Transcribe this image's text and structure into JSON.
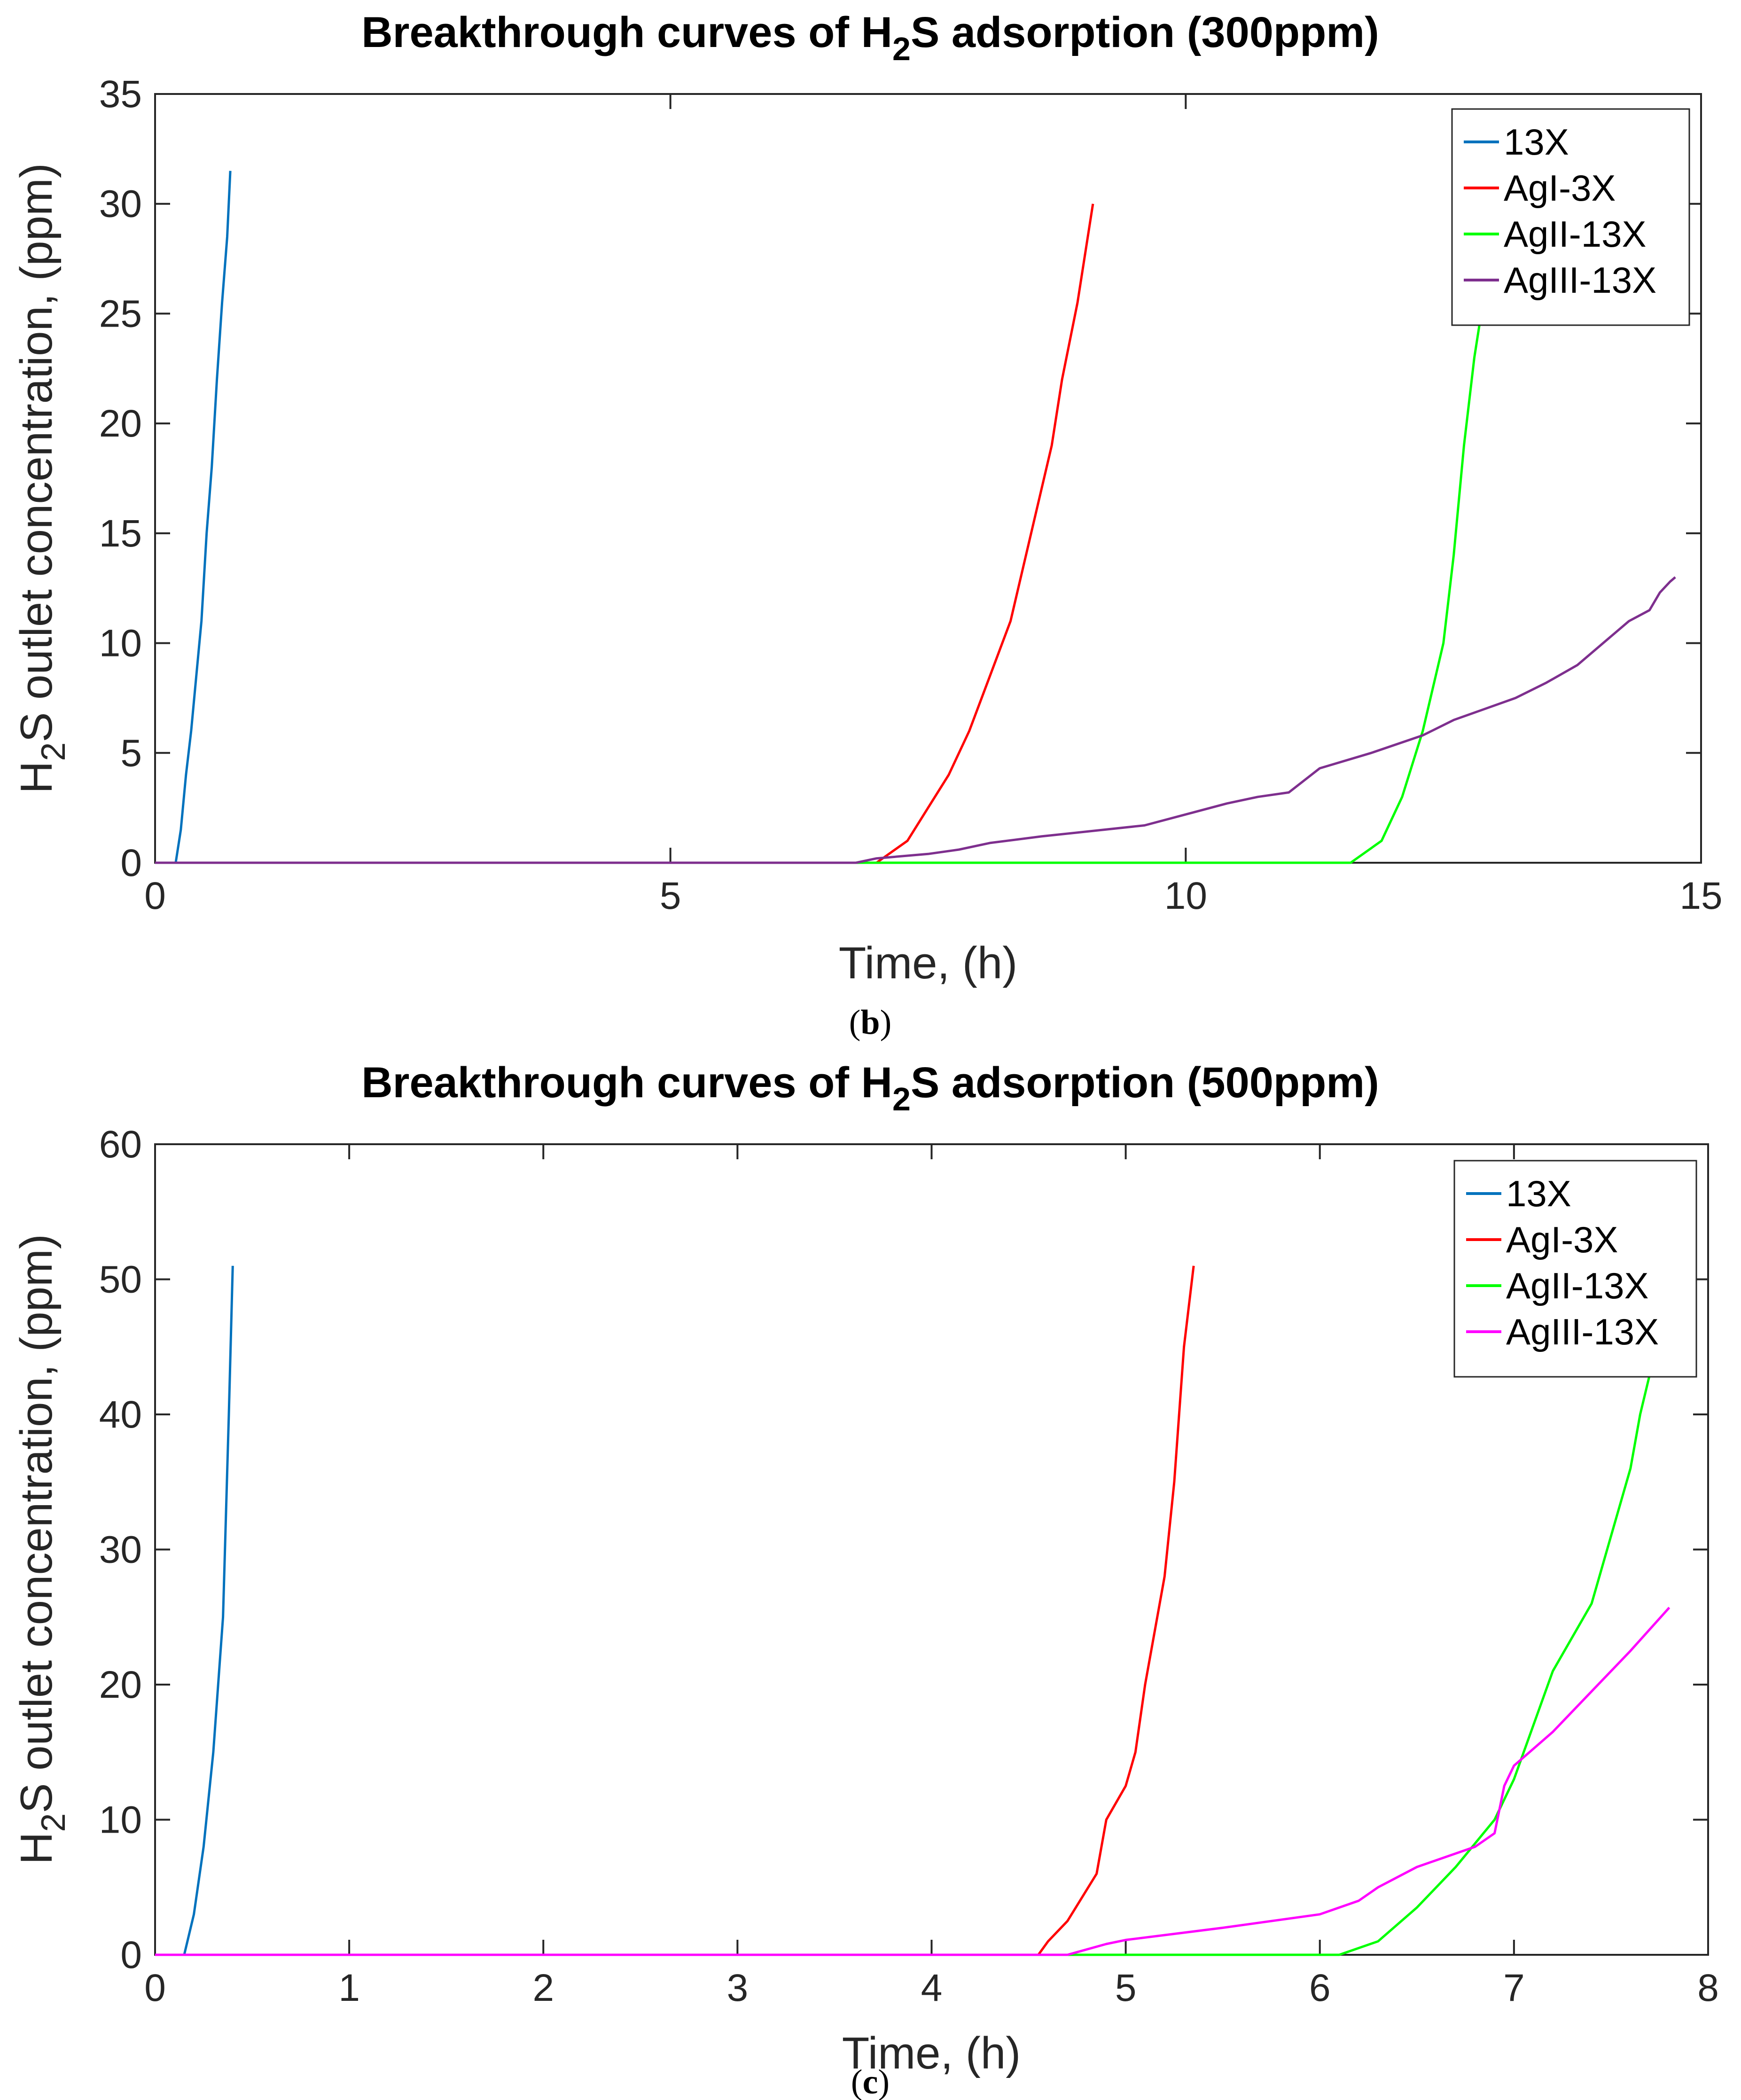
{
  "chart_data": [
    {
      "type": "line",
      "title_prefix": "Breakthrough curves of H",
      "title_sub": "2",
      "title_suffix": "S adsorption (300ppm)",
      "xlabel": "Time, (h)",
      "ylabel_prefix": "H",
      "ylabel_sub": "2",
      "ylabel_suffix": "S outlet concentration, (ppm)",
      "xlim": [
        0,
        15
      ],
      "ylim": [
        0,
        35
      ],
      "xticks": [
        0,
        5,
        10,
        15
      ],
      "yticks": [
        0,
        5,
        10,
        15,
        20,
        25,
        30,
        35
      ],
      "legend_position": "top-right",
      "caption_open": "(",
      "caption_letter": "b",
      "caption_close": ")",
      "series": [
        {
          "name": "13X",
          "color": "#0072BD",
          "points": [
            [
              0,
              0
            ],
            [
              0.2,
              0
            ],
            [
              0.25,
              1.5
            ],
            [
              0.3,
              4
            ],
            [
              0.35,
              6
            ],
            [
              0.4,
              8.5
            ],
            [
              0.45,
              11
            ],
            [
              0.5,
              15
            ],
            [
              0.55,
              18
            ],
            [
              0.6,
              22
            ],
            [
              0.65,
              25.5
            ],
            [
              0.7,
              28.5
            ],
            [
              0.73,
              31.5
            ]
          ]
        },
        {
          "name": "AgI-3X",
          "color": "#FF0000",
          "points": [
            [
              0,
              0
            ],
            [
              7.0,
              0
            ],
            [
              7.3,
              1
            ],
            [
              7.5,
              2.5
            ],
            [
              7.7,
              4
            ],
            [
              7.9,
              6
            ],
            [
              8.1,
              8.5
            ],
            [
              8.3,
              11
            ],
            [
              8.5,
              15
            ],
            [
              8.7,
              19
            ],
            [
              8.8,
              22
            ],
            [
              8.95,
              25.5
            ],
            [
              9.1,
              30
            ]
          ]
        },
        {
          "name": "AgII-13X",
          "color": "#00FF00",
          "points": [
            [
              0,
              0
            ],
            [
              11.6,
              0
            ],
            [
              11.9,
              1
            ],
            [
              12.1,
              3
            ],
            [
              12.3,
              6
            ],
            [
              12.5,
              10
            ],
            [
              12.6,
              14
            ],
            [
              12.7,
              19
            ],
            [
              12.8,
              23
            ],
            [
              12.9,
              26
            ]
          ]
        },
        {
          "name": "AgIII-13X",
          "color": "#7E2F8E",
          "points": [
            [
              0,
              0
            ],
            [
              6.8,
              0
            ],
            [
              7.0,
              0.2
            ],
            [
              7.5,
              0.4
            ],
            [
              7.8,
              0.6
            ],
            [
              8.1,
              0.9
            ],
            [
              8.6,
              1.2
            ],
            [
              9.2,
              1.5
            ],
            [
              9.6,
              1.7
            ],
            [
              10.0,
              2.2
            ],
            [
              10.4,
              2.7
            ],
            [
              10.7,
              3.0
            ],
            [
              11.0,
              3.2
            ],
            [
              11.3,
              4.3
            ],
            [
              11.8,
              5.0
            ],
            [
              12.3,
              5.8
            ],
            [
              12.6,
              6.5
            ],
            [
              12.9,
              7.0
            ],
            [
              13.2,
              7.5
            ],
            [
              13.5,
              8.2
            ],
            [
              13.8,
              9.0
            ],
            [
              14.1,
              10.2
            ],
            [
              14.3,
              11.0
            ],
            [
              14.5,
              11.5
            ],
            [
              14.6,
              12.3
            ],
            [
              14.7,
              12.8
            ],
            [
              14.75,
              13.0
            ]
          ]
        }
      ]
    },
    {
      "type": "line",
      "title_prefix": "Breakthrough curves of H",
      "title_sub": "2",
      "title_suffix": "S adsorption (500ppm)",
      "xlabel": "Time, (h)",
      "ylabel_prefix": "H",
      "ylabel_sub": "2",
      "ylabel_suffix": "S outlet concentration, (ppm)",
      "xlim": [
        0,
        8
      ],
      "ylim": [
        0,
        60
      ],
      "xticks": [
        0,
        1,
        2,
        3,
        4,
        5,
        6,
        7,
        8
      ],
      "yticks": [
        0,
        10,
        20,
        30,
        40,
        50,
        60
      ],
      "legend_position": "top-right",
      "caption_open": "(",
      "caption_letter": "c",
      "caption_close": ")",
      "series": [
        {
          "name": "13X",
          "color": "#0072BD",
          "points": [
            [
              0,
              0
            ],
            [
              0.15,
              0
            ],
            [
              0.2,
              3
            ],
            [
              0.25,
              8
            ],
            [
              0.3,
              15
            ],
            [
              0.35,
              25
            ],
            [
              0.38,
              40
            ],
            [
              0.4,
              51
            ]
          ]
        },
        {
          "name": "AgI-3X",
          "color": "#FF0000",
          "points": [
            [
              0,
              0
            ],
            [
              4.55,
              0
            ],
            [
              4.6,
              1
            ],
            [
              4.7,
              2.5
            ],
            [
              4.85,
              6
            ],
            [
              4.9,
              10
            ],
            [
              5.0,
              12.5
            ],
            [
              5.05,
              15
            ],
            [
              5.1,
              20
            ],
            [
              5.2,
              28
            ],
            [
              5.25,
              35
            ],
            [
              5.3,
              45
            ],
            [
              5.35,
              51
            ]
          ]
        },
        {
          "name": "AgII-13X",
          "color": "#00FF00",
          "points": [
            [
              0,
              0
            ],
            [
              6.1,
              0
            ],
            [
              6.3,
              1
            ],
            [
              6.5,
              3.5
            ],
            [
              6.7,
              6.5
            ],
            [
              6.9,
              10
            ],
            [
              7.0,
              13
            ],
            [
              7.1,
              17
            ],
            [
              7.2,
              21
            ],
            [
              7.4,
              26
            ],
            [
              7.5,
              31
            ],
            [
              7.6,
              36
            ],
            [
              7.65,
              40
            ],
            [
              7.7,
              43
            ]
          ]
        },
        {
          "name": "AgIII-13X",
          "color": "#FF00FF",
          "points": [
            [
              0,
              0
            ],
            [
              4.7,
              0
            ],
            [
              4.9,
              0.8
            ],
            [
              5.0,
              1.1
            ],
            [
              5.5,
              2.0
            ],
            [
              6.0,
              3.0
            ],
            [
              6.2,
              4.0
            ],
            [
              6.3,
              5.0
            ],
            [
              6.5,
              6.5
            ],
            [
              6.8,
              8.0
            ],
            [
              6.9,
              9.0
            ],
            [
              6.95,
              12.5
            ],
            [
              7.0,
              14
            ],
            [
              7.2,
              16.5
            ],
            [
              7.4,
              19.5
            ],
            [
              7.6,
              22.5
            ],
            [
              7.8,
              25.7
            ]
          ]
        }
      ]
    }
  ]
}
